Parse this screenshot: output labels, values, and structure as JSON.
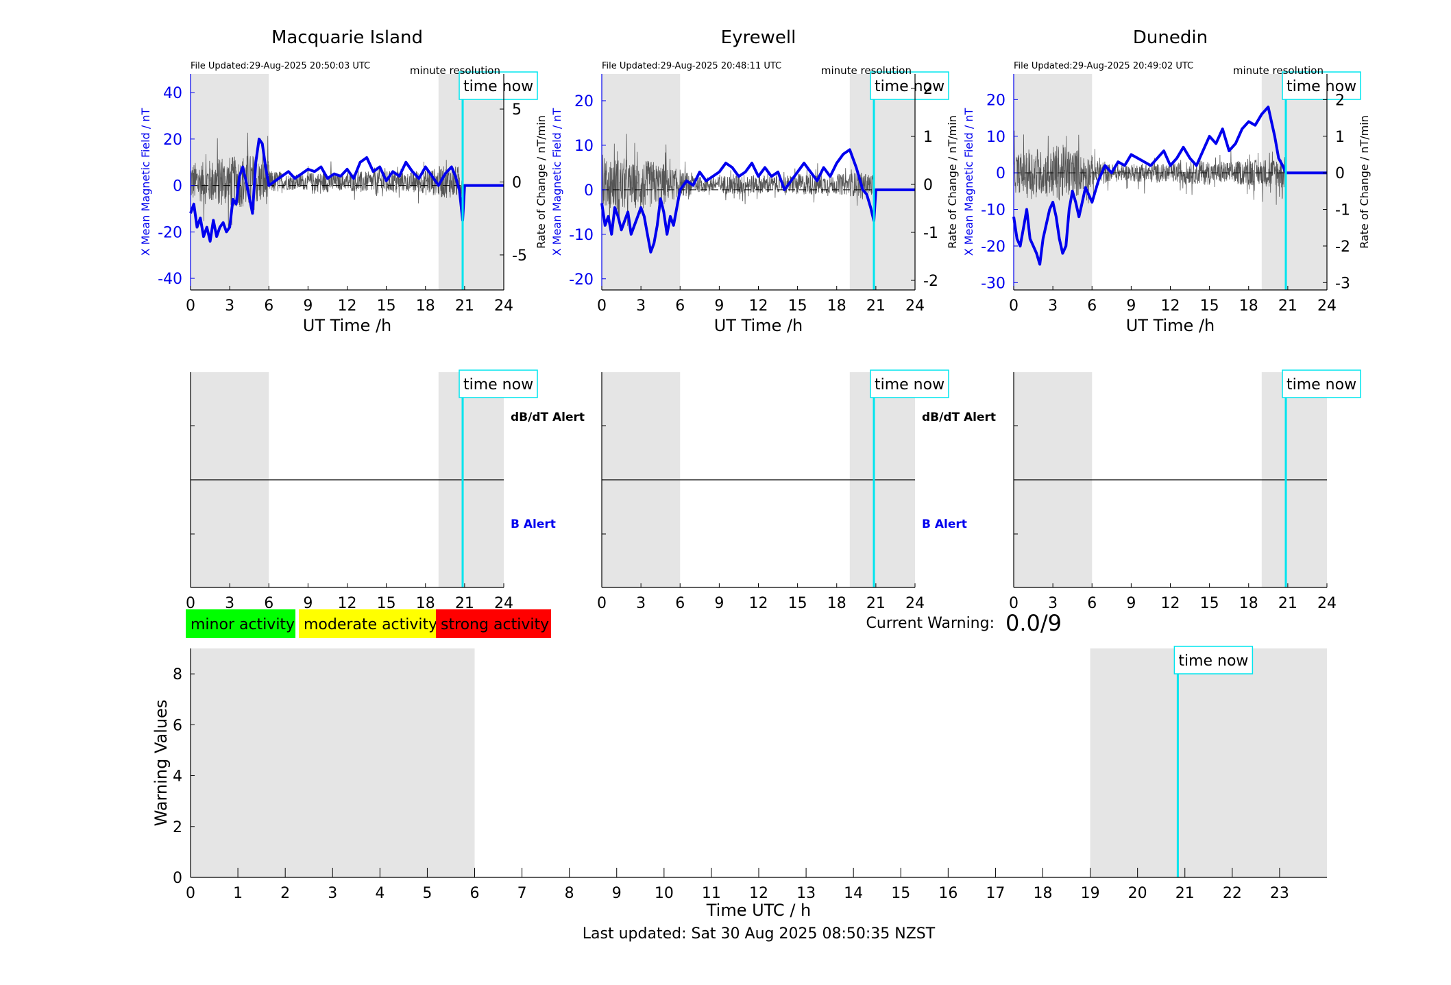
{
  "colors": {
    "field": "#0000ee",
    "rate": "#555555",
    "now_line": "#00e5ee",
    "shade": "#e5e5e5",
    "minor": "#00ff00",
    "moderate": "#ffff00",
    "strong": "#ff0000"
  },
  "labels": {
    "time_now": "time now",
    "minute_resolution": "minute resolution",
    "ut_xlabel": "UT Time /h",
    "left_ylabel": "X Mean Magnetic Field / nT",
    "right_ylabel": "Rate of Change / nT/min",
    "dbdt_alert": "dB/dT Alert",
    "b_alert": "B Alert",
    "current_warning_label": "Current Warning:",
    "current_warning_value": "0.0/9",
    "warning_ylabel": "Warning Values",
    "warning_xlabel": "Time UTC / h",
    "last_updated": "Last updated: Sat 30 Aug 2025 08:50:35 NZST"
  },
  "legend": [
    "minor activity",
    "moderate activity",
    "strong activity"
  ],
  "chart_data": [
    {
      "type": "line",
      "title": "Macquarie Island",
      "file_updated": "File Updated:29-Aug-2025 20:50:03 UTC",
      "xlabel": "UT Time /h",
      "xlim": [
        0,
        24
      ],
      "xticks": [
        0,
        3,
        6,
        9,
        12,
        15,
        18,
        21,
        24
      ],
      "ylabel": "X Mean Magnetic Field / nT",
      "ylim": [
        -45,
        48
      ],
      "yticks": [
        -40,
        -20,
        0,
        20,
        40
      ],
      "y2label": "Rate of Change / nT/min",
      "y2lim": [
        -7.4,
        7.4
      ],
      "y2ticks": [
        -5,
        0,
        5
      ],
      "shaded_ranges": [
        [
          0,
          6
        ],
        [
          19,
          24
        ]
      ],
      "time_now": 20.85,
      "series": [
        {
          "role": "field",
          "x": [
            0,
            0.25,
            0.5,
            0.75,
            1,
            1.25,
            1.5,
            1.75,
            2,
            2.25,
            2.5,
            2.75,
            3,
            3.25,
            3.5,
            3.75,
            4,
            4.25,
            4.5,
            4.75,
            5,
            5.25,
            5.5,
            5.75,
            6,
            6.5,
            7,
            7.5,
            8,
            8.5,
            9,
            9.5,
            10,
            10.5,
            11,
            11.5,
            12,
            12.5,
            13,
            13.5,
            14,
            14.5,
            15,
            15.5,
            16,
            16.5,
            17,
            17.5,
            18,
            18.5,
            19,
            19.5,
            20,
            20.3,
            20.6,
            20.85,
            21,
            22,
            23,
            24
          ],
          "y": [
            -12,
            -8,
            -18,
            -14,
            -22,
            -18,
            -24,
            -15,
            -22,
            -18,
            -16,
            -20,
            -18,
            -6,
            -8,
            4,
            8,
            2,
            -5,
            -12,
            10,
            20,
            18,
            8,
            0,
            2,
            4,
            6,
            3,
            5,
            7,
            6,
            8,
            3,
            5,
            4,
            7,
            3,
            10,
            12,
            6,
            8,
            2,
            6,
            4,
            10,
            6,
            3,
            8,
            4,
            0,
            5,
            8,
            4,
            -2,
            -15,
            0,
            0,
            0,
            0
          ]
        },
        {
          "role": "rate",
          "amplitude_by_hour": [
            2.5,
            2.8,
            3.0,
            3.2,
            3.5,
            2.8,
            1.4,
            1.0,
            1.0,
            1.2,
            1.3,
            1.0,
            1.2,
            1.3,
            1.8,
            1.4,
            1.2,
            1.4,
            1.7,
            2.0,
            2.0
          ]
        }
      ]
    },
    {
      "type": "line",
      "title": "Eyrewell",
      "file_updated": "File Updated:29-Aug-2025 20:48:11 UTC",
      "xlabel": "UT Time /h",
      "xlim": [
        0,
        24
      ],
      "xticks": [
        0,
        3,
        6,
        9,
        12,
        15,
        18,
        21,
        24
      ],
      "ylabel": "X Mean Magnetic Field / nT",
      "ylim": [
        -22.5,
        26
      ],
      "yticks": [
        -20,
        -10,
        0,
        10,
        20
      ],
      "y2label": "Rate of Change / nT/min",
      "y2lim": [
        -2.2,
        2.3
      ],
      "y2ticks": [
        -2,
        -1,
        0,
        1,
        2
      ],
      "shaded_ranges": [
        [
          0,
          6
        ],
        [
          19,
          24
        ]
      ],
      "time_now": 20.85,
      "series": [
        {
          "role": "field",
          "x": [
            0,
            0.25,
            0.5,
            0.75,
            1,
            1.25,
            1.5,
            1.75,
            2,
            2.25,
            2.5,
            2.75,
            3,
            3.25,
            3.5,
            3.75,
            4,
            4.25,
            4.5,
            4.75,
            5,
            5.25,
            5.5,
            5.75,
            6,
            6.5,
            7,
            7.5,
            8,
            8.5,
            9,
            9.5,
            10,
            10.5,
            11,
            11.5,
            12,
            12.5,
            13,
            13.5,
            14,
            14.5,
            15,
            15.5,
            16,
            16.5,
            17,
            17.5,
            18,
            18.5,
            19,
            19.5,
            20,
            20.3,
            20.6,
            20.85,
            21,
            22,
            23,
            24
          ],
          "y": [
            -3,
            -8,
            -6,
            -10,
            -4,
            -6,
            -9,
            -7,
            -5,
            -10,
            -8,
            -6,
            -4,
            -6,
            -10,
            -14,
            -12,
            -8,
            -2,
            -5,
            -10,
            -6,
            -8,
            -4,
            0,
            2,
            1,
            4,
            2,
            3,
            4,
            6,
            5,
            3,
            4,
            6,
            3,
            5,
            3,
            4,
            0,
            2,
            4,
            6,
            4,
            2,
            5,
            3,
            6,
            8,
            9,
            5,
            0,
            -1,
            -4,
            -7,
            0,
            0,
            0,
            0
          ]
        },
        {
          "role": "rate",
          "amplitude_by_hour": [
            0.9,
            1.0,
            0.8,
            0.9,
            0.8,
            0.6,
            0.45,
            0.3,
            0.3,
            0.35,
            0.4,
            0.35,
            0.35,
            0.3,
            0.35,
            0.4,
            0.4,
            0.35,
            0.4,
            0.45,
            0.4
          ]
        }
      ]
    },
    {
      "type": "line",
      "title": "Dunedin",
      "file_updated": "File Updated:29-Aug-2025 20:49:02 UTC",
      "xlabel": "UT Time /h",
      "xlim": [
        0,
        24
      ],
      "xticks": [
        0,
        3,
        6,
        9,
        12,
        15,
        18,
        21,
        24
      ],
      "ylabel": "X Mean Magnetic Field / nT",
      "ylim": [
        -32,
        27
      ],
      "yticks": [
        -30,
        -20,
        -10,
        0,
        10,
        20
      ],
      "y2label": "Rate of Change / nT/min",
      "y2lim": [
        -3.2,
        2.7
      ],
      "y2ticks": [
        -3,
        -2,
        -1,
        0,
        1,
        2
      ],
      "shaded_ranges": [
        [
          0,
          6
        ],
        [
          19,
          24
        ]
      ],
      "time_now": 20.85,
      "series": [
        {
          "role": "field",
          "x": [
            0,
            0.25,
            0.5,
            0.75,
            1,
            1.25,
            1.5,
            1.75,
            2,
            2.25,
            2.5,
            2.75,
            3,
            3.25,
            3.5,
            3.75,
            4,
            4.25,
            4.5,
            4.75,
            5,
            5.25,
            5.5,
            5.75,
            6,
            6.5,
            7,
            7.5,
            8,
            8.5,
            9,
            9.5,
            10,
            10.5,
            11,
            11.5,
            12,
            12.5,
            13,
            13.5,
            14,
            14.5,
            15,
            15.5,
            16,
            16.5,
            17,
            17.5,
            18,
            18.5,
            19,
            19.5,
            20,
            20.3,
            20.6,
            20.85,
            21,
            22,
            23,
            24
          ],
          "y": [
            -12,
            -18,
            -20,
            -15,
            -10,
            -18,
            -20,
            -22,
            -25,
            -18,
            -14,
            -10,
            -8,
            -12,
            -18,
            -22,
            -20,
            -10,
            -5,
            -8,
            -12,
            -8,
            -4,
            -6,
            -8,
            -2,
            2,
            0,
            3,
            2,
            5,
            4,
            3,
            2,
            4,
            6,
            2,
            4,
            7,
            4,
            2,
            6,
            10,
            8,
            12,
            6,
            8,
            12,
            14,
            13,
            16,
            18,
            10,
            4,
            2,
            0,
            0,
            0,
            0,
            0
          ]
        },
        {
          "role": "rate",
          "amplitude_by_hour": [
            1.0,
            1.3,
            1.1,
            1.4,
            1.2,
            0.9,
            0.6,
            0.45,
            0.4,
            0.45,
            0.5,
            0.45,
            0.5,
            0.55,
            0.6,
            0.5,
            0.55,
            0.6,
            0.65,
            0.7,
            0.8
          ]
        }
      ]
    },
    {
      "type": "line",
      "title": "",
      "xlabel": "UT Time /h",
      "xlim": [
        0,
        24
      ],
      "xticks": [
        0,
        3,
        6,
        9,
        12,
        15,
        18,
        21,
        24
      ],
      "shaded_ranges": [
        [
          0,
          6
        ],
        [
          19,
          24
        ]
      ],
      "time_now": 20.85,
      "upper_label": "dB/dT Alert",
      "lower_label": "B Alert",
      "series": []
    },
    {
      "type": "line",
      "title": "",
      "xlabel": "UT Time /h",
      "xlim": [
        0,
        24
      ],
      "xticks": [
        0,
        3,
        6,
        9,
        12,
        15,
        18,
        21,
        24
      ],
      "shaded_ranges": [
        [
          0,
          6
        ],
        [
          19,
          24
        ]
      ],
      "time_now": 20.85,
      "upper_label": "dB/dT Alert",
      "lower_label": "B Alert",
      "series": []
    },
    {
      "type": "line",
      "title": "",
      "xlabel": "UT Time /h",
      "xlim": [
        0,
        24
      ],
      "xticks": [
        0,
        3,
        6,
        9,
        12,
        15,
        18,
        21,
        24
      ],
      "shaded_ranges": [
        [
          0,
          6
        ],
        [
          19,
          24
        ]
      ],
      "time_now": 20.85,
      "series": []
    },
    {
      "type": "line",
      "title": "",
      "xlabel": "Time UTC / h",
      "ylabel": "Warning Values",
      "xlim": [
        0,
        24
      ],
      "xticks": [
        0,
        1,
        2,
        3,
        4,
        5,
        6,
        7,
        8,
        9,
        10,
        11,
        12,
        13,
        14,
        15,
        16,
        17,
        18,
        19,
        20,
        21,
        22,
        23
      ],
      "ylim": [
        0,
        9
      ],
      "yticks": [
        0,
        2,
        4,
        6,
        8
      ],
      "shaded_ranges": [
        [
          0,
          6
        ],
        [
          19,
          24
        ]
      ],
      "time_now": 20.85,
      "series": []
    }
  ]
}
